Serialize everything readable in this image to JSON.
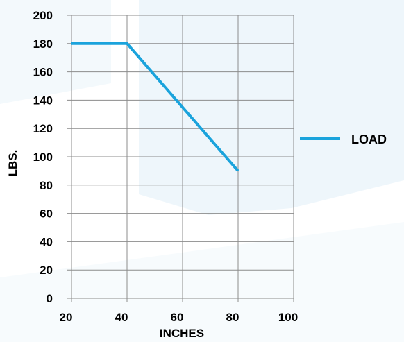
{
  "chart_data": {
    "type": "line",
    "title": "",
    "xlabel": "INCHES",
    "ylabel": "LBS.",
    "xlim": [
      20,
      100
    ],
    "ylim": [
      0,
      200
    ],
    "x_ticks": [
      "20",
      "40",
      "60",
      "80",
      "100"
    ],
    "y_ticks": [
      "0",
      "20",
      "40",
      "60",
      "80",
      "100",
      "120",
      "140",
      "160",
      "180",
      "200"
    ],
    "grid": true,
    "legend_position": "right",
    "series": [
      {
        "name": "LOAD",
        "color": "#1aa3dc",
        "x": [
          20,
          40,
          80
        ],
        "y": [
          180,
          180,
          90
        ]
      }
    ]
  }
}
